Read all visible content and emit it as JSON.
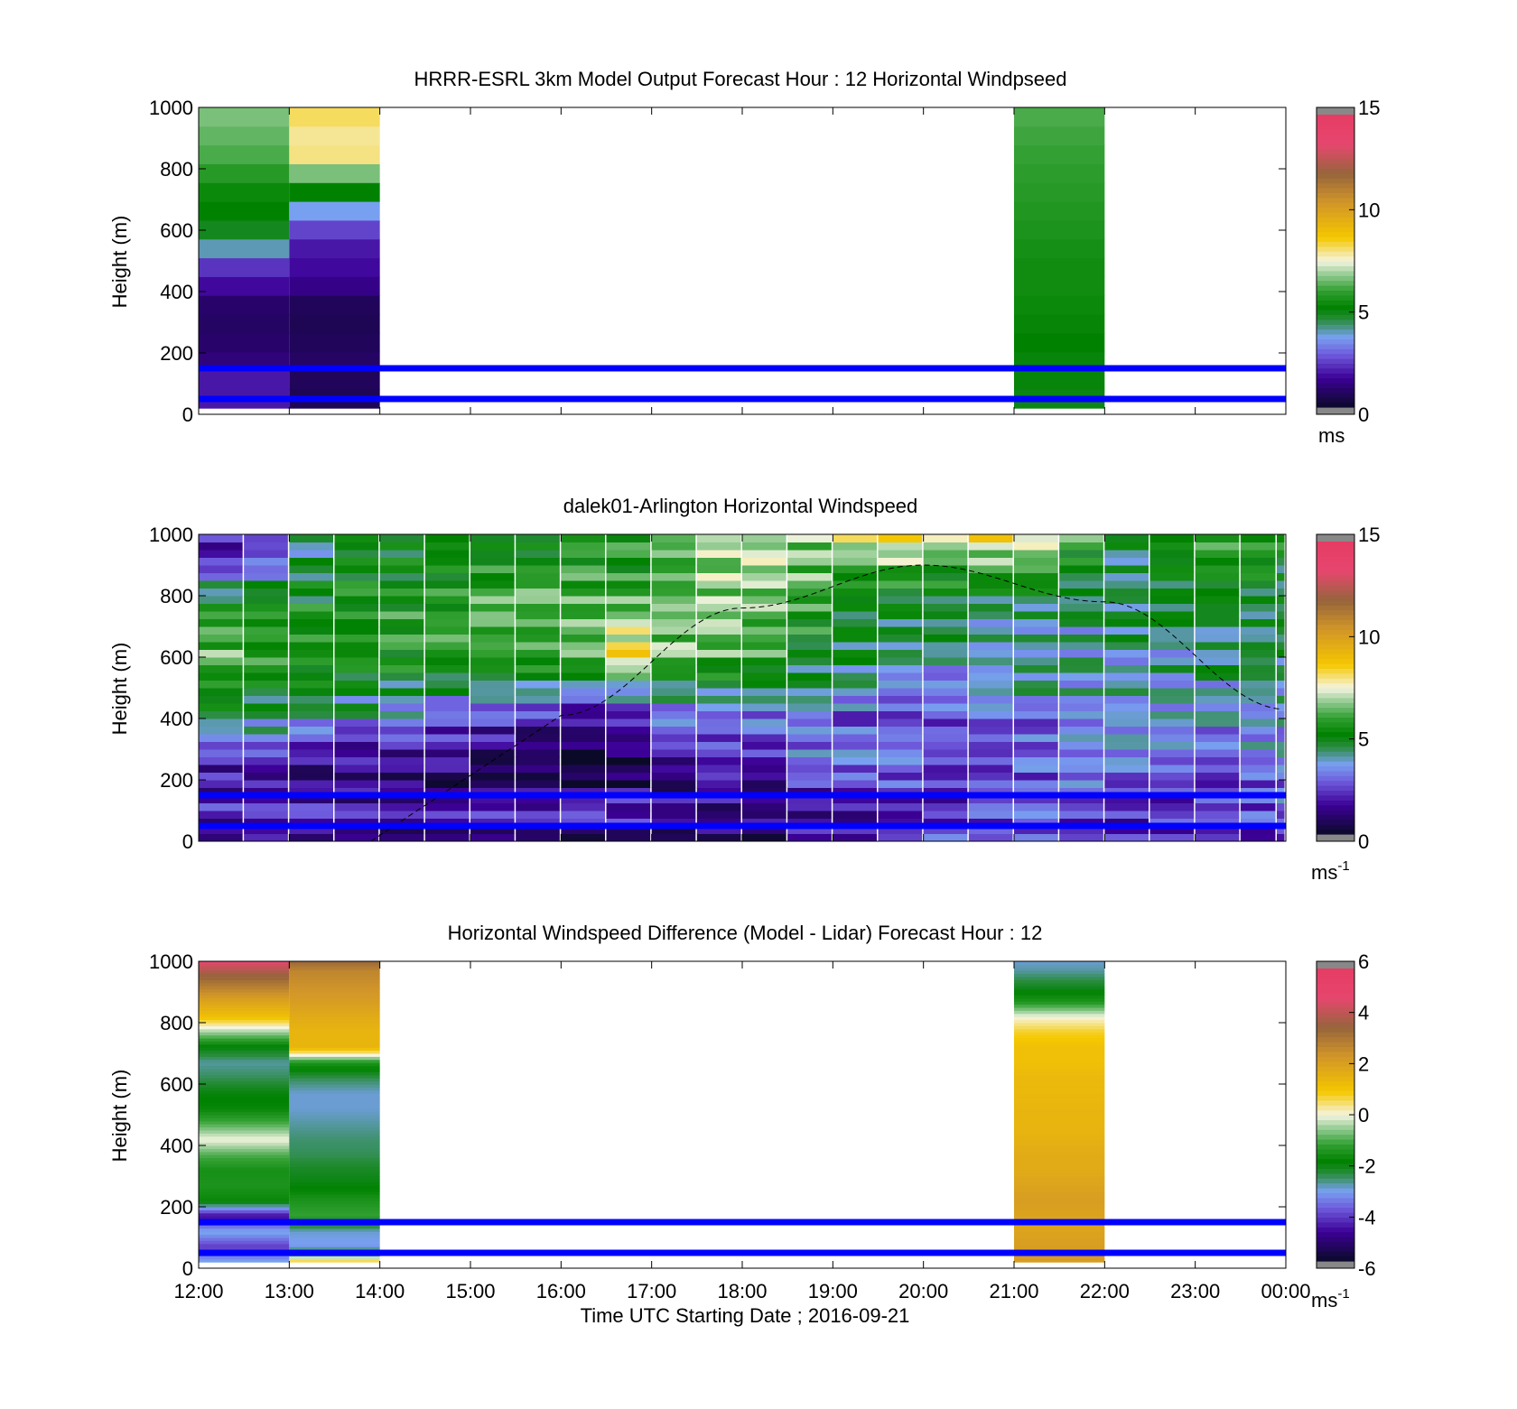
{
  "figure": {
    "xlabel": "Time UTC  Starting Date ; 2016-09-21",
    "x_ticks": [
      "12:00",
      "13:00",
      "14:00",
      "15:00",
      "16:00",
      "17:00",
      "18:00",
      "19:00",
      "20:00",
      "21:00",
      "22:00",
      "23:00",
      "00:00"
    ]
  },
  "chart_data": [
    {
      "type": "heatmap",
      "title": "HRRR-ESRL 3km Model Output   Forecast Hour : 12 Horizontal Windpseed",
      "ylabel": "Height (m)",
      "xlim_hours": [
        12,
        24
      ],
      "ylim": [
        0,
        1000
      ],
      "y_ticks": [
        0,
        200,
        400,
        600,
        800,
        1000
      ],
      "colorbar": {
        "min": 0,
        "max": 15,
        "ticks": [
          0,
          5,
          10,
          15
        ],
        "unit": "ms"
      },
      "reference_lines_m": [
        50,
        150
      ],
      "columns": [
        {
          "t_start": 12,
          "t_end": 13,
          "z_base": 20,
          "speed": [
            1.8,
            1.8,
            1.1,
            0.9,
            0.8,
            0.9,
            1.6,
            2.2,
            3.9,
            4.8,
            5.1,
            5.3,
            5.8,
            6.2,
            6.4,
            6.6
          ]
        },
        {
          "t_start": 13,
          "t_end": 14,
          "z_base": 20,
          "speed": [
            0.6,
            0.7,
            0.8,
            0.7,
            0.6,
            0.7,
            1.3,
            1.6,
            1.8,
            2.4,
            3.6,
            5.1,
            6.6,
            8.0,
            7.9,
            8.2
          ]
        },
        {
          "t_start": 21,
          "t_end": 22,
          "z_base": 20,
          "speed": [
            4.9,
            5.0,
            5.0,
            5.1,
            5.2,
            5.3,
            5.4,
            5.4,
            5.5,
            5.6,
            5.7,
            5.8,
            5.9,
            6.0,
            6.1,
            6.2
          ]
        }
      ]
    },
    {
      "type": "heatmap",
      "title": "dalek01-Arlington  Horizontal Windspeed",
      "ylabel": "Height (m)",
      "xlim_hours": [
        12,
        24
      ],
      "ylim": [
        0,
        1000
      ],
      "y_ticks": [
        0,
        200,
        400,
        600,
        800,
        1000
      ],
      "colorbar": {
        "min": 0,
        "max": 15,
        "ticks": [
          0,
          5,
          10,
          15
        ],
        "unit": "ms",
        "unit_exp": "-1"
      },
      "reference_lines_m": [
        50,
        150
      ],
      "time_hours": [
        12.0,
        12.5,
        13.0,
        13.5,
        14.0,
        14.5,
        15.0,
        15.5,
        16.0,
        16.5,
        17.0,
        17.5,
        18.0,
        18.5,
        19.0,
        19.5,
        20.0,
        20.5,
        21.0,
        21.5,
        22.0,
        22.5,
        23.0,
        23.5,
        23.9
      ],
      "profile_heights_m": [
        0,
        100,
        200,
        300,
        400,
        500,
        600,
        700,
        800,
        900,
        1000
      ],
      "profiles": [
        [
          1.5,
          2.5,
          2.0,
          3.0,
          5.0,
          6.0,
          7.0,
          6.5,
          5.5,
          3.0,
          2.5
        ],
        [
          1.5,
          2.5,
          2.0,
          2.8,
          4.8,
          5.8,
          6.5,
          6.2,
          5.2,
          4.0,
          2.5
        ],
        [
          1.2,
          2.5,
          1.8,
          2.5,
          4.5,
          5.5,
          6.2,
          6.0,
          5.5,
          5.0,
          4.5
        ],
        [
          1.2,
          2.5,
          1.5,
          2.2,
          4.2,
          5.2,
          6.0,
          6.0,
          5.8,
          5.5,
          5.0
        ],
        [
          1.0,
          2.8,
          1.5,
          2.0,
          4.0,
          5.0,
          6.0,
          6.2,
          6.0,
          5.5,
          5.0
        ],
        [
          1.0,
          2.8,
          1.4,
          2.0,
          3.2,
          4.8,
          6.2,
          6.4,
          6.2,
          5.8,
          5.2
        ],
        [
          1.0,
          2.8,
          1.2,
          1.8,
          2.8,
          4.5,
          6.5,
          6.6,
          6.4,
          6.0,
          5.5
        ],
        [
          1.0,
          2.5,
          1.0,
          1.5,
          2.5,
          4.2,
          6.5,
          6.8,
          6.5,
          6.0,
          5.8
        ],
        [
          1.2,
          2.8,
          0.8,
          1.2,
          2.2,
          4.0,
          6.8,
          7.0,
          6.6,
          6.2,
          6.0
        ],
        [
          1.5,
          2.8,
          1.0,
          1.5,
          2.5,
          4.5,
          8.8,
          7.5,
          6.8,
          6.2,
          6.0
        ],
        [
          1.0,
          2.5,
          1.5,
          2.5,
          3.5,
          5.0,
          7.0,
          7.0,
          6.8,
          6.5,
          7.0
        ],
        [
          1.0,
          2.0,
          2.5,
          3.0,
          3.2,
          5.2,
          6.8,
          7.0,
          7.0,
          7.5,
          8.0
        ],
        [
          1.5,
          1.5,
          2.0,
          2.5,
          3.5,
          5.0,
          6.5,
          6.8,
          7.0,
          7.2,
          8.0
        ],
        [
          2.0,
          1.8,
          3.0,
          3.5,
          4.0,
          4.5,
          5.0,
          6.0,
          6.5,
          7.0,
          7.5
        ],
        [
          2.0,
          2.0,
          3.0,
          3.5,
          3.0,
          4.5,
          4.8,
          5.0,
          5.8,
          6.5,
          8.0
        ],
        [
          2.5,
          2.0,
          3.2,
          3.5,
          3.0,
          4.0,
          4.5,
          4.8,
          5.5,
          7.0,
          8.5
        ],
        [
          3.0,
          2.5,
          3.0,
          3.2,
          3.0,
          4.0,
          4.5,
          4.8,
          5.2,
          6.5,
          8.0
        ],
        [
          2.5,
          3.0,
          3.0,
          3.5,
          3.2,
          4.2,
          4.5,
          4.5,
          5.0,
          6.8,
          8.8
        ],
        [
          3.0,
          3.5,
          3.0,
          3.5,
          3.5,
          4.5,
          4.2,
          4.5,
          5.0,
          6.5,
          8.0
        ],
        [
          2.5,
          3.0,
          3.5,
          3.8,
          4.0,
          4.5,
          4.2,
          4.5,
          5.0,
          5.5,
          6.5
        ],
        [
          2.5,
          2.5,
          3.0,
          3.8,
          4.0,
          4.5,
          4.5,
          4.8,
          5.0,
          5.0,
          5.0
        ],
        [
          2.5,
          2.5,
          3.2,
          3.5,
          4.0,
          4.2,
          4.5,
          5.0,
          5.5,
          5.8,
          6.0
        ],
        [
          2.0,
          2.8,
          3.0,
          3.5,
          3.8,
          4.2,
          4.8,
          5.2,
          5.5,
          6.0,
          6.5
        ],
        [
          2.5,
          3.0,
          3.2,
          3.8,
          4.0,
          4.5,
          5.0,
          5.2,
          5.5,
          5.8,
          6.0
        ],
        [
          3.0,
          3.5,
          3.5,
          4.0,
          4.2,
          4.6,
          5.0,
          5.0,
          5.2,
          5.5,
          6.0
        ]
      ],
      "overlay_curve": {
        "style": "dashed",
        "t": [
          13.9,
          16,
          18,
          20,
          22,
          24
        ],
        "z": [
          0,
          410,
          760,
          900,
          780,
          430
        ]
      }
    },
    {
      "type": "heatmap",
      "title": "Horizontal Windspeed Difference (Model - Lidar) Forecast Hour : 12",
      "ylabel": "Height (m)",
      "xlim_hours": [
        12,
        24
      ],
      "ylim": [
        0,
        1000
      ],
      "y_ticks": [
        0,
        200,
        400,
        600,
        800,
        1000
      ],
      "colorbar": {
        "min": -6,
        "max": 6,
        "ticks": [
          -6,
          -4,
          -2,
          0,
          2,
          4,
          6
        ],
        "unit": "ms",
        "unit_exp": "-1"
      },
      "reference_lines_m": [
        50,
        150
      ],
      "profile_heights_m": [
        20,
        70,
        120,
        170,
        220,
        270,
        320,
        370,
        420,
        470,
        520,
        570,
        620,
        670,
        720,
        770,
        820,
        870,
        920,
        970,
        1000
      ],
      "columns": [
        {
          "t_start": 12,
          "t_end": 13,
          "diff": [
            -3.0,
            -4.2,
            -3.0,
            -4.8,
            -1.8,
            -1.5,
            -1.6,
            -1.0,
            0.0,
            -1.0,
            -1.8,
            -2.0,
            -2.5,
            -2.8,
            -2.0,
            -0.5,
            1.2,
            2.0,
            3.0,
            4.0,
            4.8
          ]
        },
        {
          "t_start": 13,
          "t_end": 14,
          "diff": [
            1.0,
            -3.2,
            -3.0,
            -1.2,
            -1.5,
            -2.0,
            -2.2,
            -2.5,
            -2.6,
            -2.8,
            -3.0,
            -3.0,
            -2.5,
            -1.5,
            1.5,
            1.5,
            1.8,
            2.2,
            2.5,
            2.8,
            3.5
          ]
        },
        {
          "t_start": 21,
          "t_end": 22,
          "diff": [
            2.2,
            2.2,
            2.0,
            2.0,
            2.2,
            2.0,
            1.8,
            1.8,
            1.6,
            1.5,
            1.5,
            1.4,
            1.4,
            1.2,
            1.2,
            0.8,
            0.0,
            -1.5,
            -2.2,
            -2.8,
            -3.0
          ]
        }
      ]
    }
  ]
}
